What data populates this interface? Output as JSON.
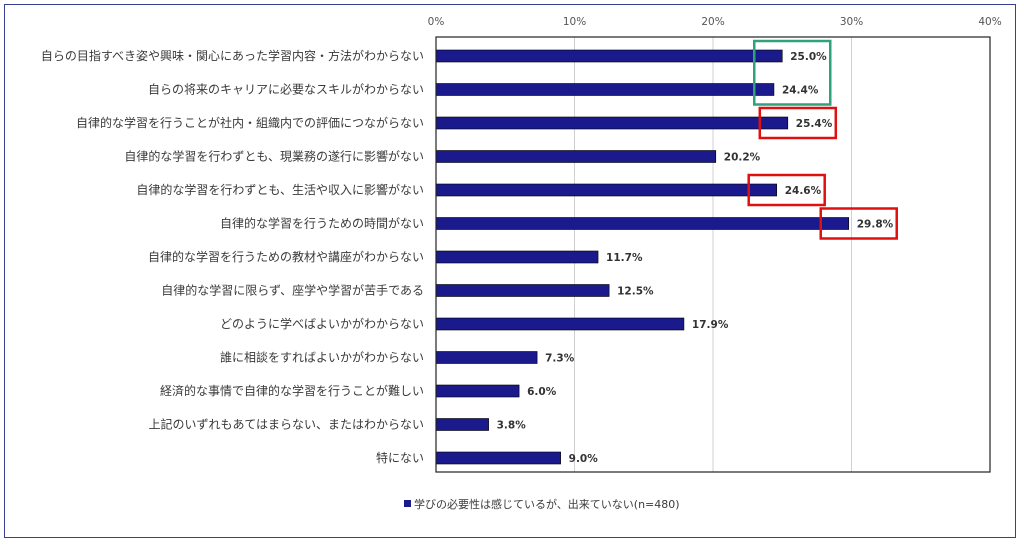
{
  "chart_data": {
    "type": "bar",
    "orientation": "horizontal",
    "categories": [
      "自らの目指すべき姿や興味・関心にあった学習内容・方法がわからない",
      "自らの将来のキャリアに必要なスキルがわからない",
      "自律的な学習を行うことが社内・組織内での評価につながらない",
      "自律的な学習を行わずとも、現業務の遂行に影響がない",
      "自律的な学習を行わずとも、生活や収入に影響がない",
      "自律的な学習を行うための時間がない",
      "自律的な学習を行うための教材や講座がわからない",
      "自律的な学習に限らず、座学や学習が苦手である",
      "どのように学べばよいかがわからない",
      "誰に相談をすればよいかがわからない",
      "経済的な事情で自律的な学習を行うことが難しい",
      "上記のいずれもあてはまらない、またはわからない",
      "特にない"
    ],
    "series": [
      {
        "name": "学びの必要性は感じているが、出来ていない(n=480)",
        "values": [
          25.0,
          24.4,
          25.4,
          20.2,
          24.6,
          29.8,
          11.7,
          12.5,
          17.9,
          7.3,
          6.0,
          3.8,
          9.0
        ],
        "labels": [
          "25.0%",
          "24.4%",
          "25.4%",
          "20.2%",
          "24.6%",
          "29.8%",
          "11.7%",
          "12.5%",
          "17.9%",
          "7.3%",
          "6.0%",
          "3.8%",
          "9.0%"
        ]
      }
    ],
    "xlim": [
      0,
      40
    ],
    "xticks": [
      "0%",
      "10%",
      "20%",
      "30%",
      "40%"
    ],
    "grid": true,
    "legend": "bottom",
    "bar_color": "#1a1a8c",
    "highlights": [
      {
        "categories": [
          0,
          1
        ],
        "color": "#2ea37a"
      },
      {
        "categories": [
          2
        ],
        "color": "#e01010"
      },
      {
        "categories": [
          4
        ],
        "color": "#e01010"
      },
      {
        "categories": [
          5
        ],
        "color": "#e01010"
      }
    ]
  }
}
